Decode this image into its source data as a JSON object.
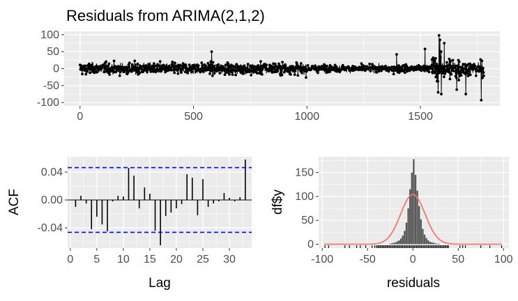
{
  "chart_data": [
    {
      "type": "line",
      "title": "Residuals from ARIMA(2,1,2)",
      "xlabel": "",
      "ylabel": "",
      "xlim": [
        -70,
        1850
      ],
      "ylim": [
        -110,
        110
      ],
      "x_ticks": [
        0,
        500,
        1000,
        1500
      ],
      "y_ticks": [
        100,
        50,
        0,
        -50,
        -100
      ],
      "n_points": 1780,
      "residual_spread": [
        {
          "from": 0,
          "to": 1000,
          "sd": 11
        },
        {
          "from": 1000,
          "to": 1550,
          "sd": 7
        },
        {
          "from": 1550,
          "to": 1680,
          "sd": 22
        },
        {
          "from": 1680,
          "to": 1780,
          "sd": 14
        }
      ],
      "notable_points": [
        {
          "x": 1582,
          "y": 98
        },
        {
          "x": 1586,
          "y": 85
        },
        {
          "x": 1578,
          "y": -70
        },
        {
          "x": 1592,
          "y": -75
        },
        {
          "x": 1605,
          "y": 75
        },
        {
          "x": 1768,
          "y": -93
        },
        {
          "x": 1700,
          "y": -75
        },
        {
          "x": 1660,
          "y": -62
        },
        {
          "x": 580,
          "y": 50
        },
        {
          "x": 1395,
          "y": 42
        },
        {
          "x": 1520,
          "y": 58
        }
      ],
      "grid": true,
      "colors": {
        "line": "#000000",
        "panel": "#ebebeb",
        "grid": "#ffffff"
      }
    },
    {
      "type": "bar",
      "title": "",
      "xlabel": "Lag",
      "ylabel": "ACF",
      "xlim": [
        -0.5,
        34.2
      ],
      "ylim": [
        -0.069,
        0.062
      ],
      "x_ticks": [
        0,
        5,
        10,
        15,
        20,
        25,
        30
      ],
      "y_ticks": [
        "0.04",
        "0.00",
        "-0.04"
      ],
      "y_tick_values": [
        0.04,
        0.0,
        -0.04
      ],
      "lags": [
        1,
        2,
        3,
        4,
        5,
        6,
        7,
        8,
        9,
        10,
        11,
        12,
        13,
        14,
        15,
        16,
        17,
        18,
        19,
        20,
        21,
        22,
        23,
        24,
        25,
        26,
        27,
        28,
        29,
        30,
        31,
        32,
        33
      ],
      "values": [
        -0.01,
        0.006,
        -0.005,
        -0.042,
        -0.024,
        -0.035,
        -0.045,
        -0.002,
        0.006,
        0.005,
        0.046,
        0.035,
        -0.012,
        0.018,
        0.009,
        -0.044,
        -0.065,
        -0.023,
        -0.018,
        -0.012,
        -0.006,
        0.037,
        0.032,
        -0.022,
        0.03,
        -0.01,
        -0.005,
        -0.002,
        0.01,
        0.003,
        -0.002,
        0.004,
        0.058
      ],
      "confidence_bound": 0.0464,
      "grid": true,
      "colors": {
        "bar": "#000000",
        "bound": "#0000ff",
        "panel": "#ebebeb"
      }
    },
    {
      "type": "bar",
      "title": "",
      "xlabel": "residuals",
      "ylabel": "df$y",
      "xlim": [
        -104,
        106
      ],
      "ylim": [
        -8,
        183
      ],
      "x_ticks": [
        -100,
        -50,
        0,
        50,
        100
      ],
      "y_ticks": [
        0,
        50,
        100,
        150
      ],
      "bin_width": 2,
      "bin_centers": [
        -25,
        -23,
        -21,
        -19,
        -17,
        -15,
        -13,
        -11,
        -9,
        -7,
        -5,
        -3,
        -1,
        1,
        3,
        5,
        7,
        9,
        11,
        13,
        15,
        17,
        19,
        21,
        23,
        25,
        27,
        29
      ],
      "counts": [
        1,
        2,
        3,
        4,
        6,
        8,
        12,
        18,
        28,
        45,
        75,
        115,
        150,
        178,
        145,
        112,
        80,
        52,
        32,
        20,
        13,
        8,
        5,
        4,
        3,
        2,
        1,
        1
      ],
      "density_curve": {
        "mean": 0,
        "sd": 13.5,
        "peak": 104
      },
      "rug_extremes": [
        -97,
        -93,
        -75,
        -70,
        -62,
        -58,
        -52,
        -45,
        -42,
        52,
        55,
        58,
        75,
        85,
        98
      ],
      "grid": true,
      "colors": {
        "bar": "#595959",
        "curve": "#f8766d",
        "panel": "#ebebeb"
      }
    }
  ]
}
